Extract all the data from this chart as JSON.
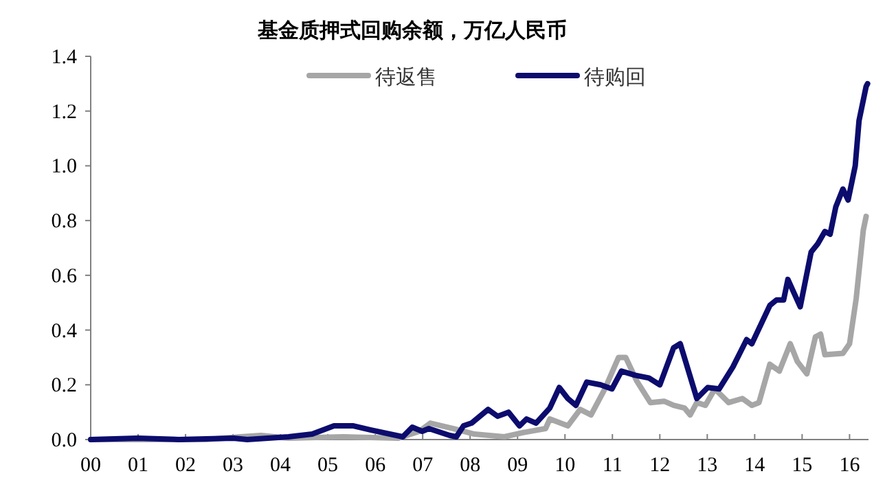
{
  "chart_data": {
    "type": "line",
    "title": "基金质押式回购余额，万亿人民币",
    "legend": "top",
    "xlim": [
      0,
      16.4
    ],
    "ylim": [
      0,
      1.4
    ],
    "xticks": [
      {
        "value": 0,
        "label": "00"
      },
      {
        "value": 1,
        "label": "01"
      },
      {
        "value": 2,
        "label": "02"
      },
      {
        "value": 3,
        "label": "03"
      },
      {
        "value": 4,
        "label": "04"
      },
      {
        "value": 5,
        "label": "05"
      },
      {
        "value": 6,
        "label": "06"
      },
      {
        "value": 7,
        "label": "07"
      },
      {
        "value": 8,
        "label": "08"
      },
      {
        "value": 9,
        "label": "09"
      },
      {
        "value": 10,
        "label": "10"
      },
      {
        "value": 11,
        "label": "11"
      },
      {
        "value": 12,
        "label": "12"
      },
      {
        "value": 13,
        "label": "13"
      },
      {
        "value": 14,
        "label": "14"
      },
      {
        "value": 15,
        "label": "15"
      },
      {
        "value": 16,
        "label": "16"
      }
    ],
    "yticks": [
      {
        "value": 0,
        "label": "0.0"
      },
      {
        "value": 0.2,
        "label": "0.2"
      },
      {
        "value": 0.4,
        "label": "0.4"
      },
      {
        "value": 0.6,
        "label": "0.6"
      },
      {
        "value": 0.8,
        "label": "0.8"
      },
      {
        "value": 1.0,
        "label": "1.0"
      },
      {
        "value": 1.2,
        "label": "1.2"
      },
      {
        "value": 1.4,
        "label": "1.4"
      }
    ],
    "series": [
      {
        "name": "待返售",
        "color": "#a6a6a6",
        "x": [
          0,
          2.43,
          3.16,
          3.59,
          4.17,
          5.33,
          6.49,
          6.93,
          7.16,
          7.65,
          8.09,
          8.72,
          9.1,
          9.59,
          9.68,
          10.06,
          10.32,
          10.55,
          10.84,
          11.13,
          11.28,
          11.51,
          11.8,
          12.09,
          12.29,
          12.52,
          12.64,
          12.78,
          12.96,
          13.16,
          13.45,
          13.74,
          13.94,
          14.09,
          14.32,
          14.52,
          14.75,
          14.9,
          15.1,
          15.28,
          15.39,
          15.48,
          15.86,
          16.0,
          16.14,
          16.29,
          16.35
        ],
        "values": [
          0,
          0,
          0.01,
          0.015,
          0.005,
          0.01,
          0.005,
          0.03,
          0.06,
          0.04,
          0.02,
          0.01,
          0.025,
          0.04,
          0.075,
          0.05,
          0.11,
          0.09,
          0.185,
          0.3,
          0.3,
          0.215,
          0.135,
          0.14,
          0.125,
          0.115,
          0.09,
          0.135,
          0.125,
          0.185,
          0.135,
          0.15,
          0.125,
          0.135,
          0.275,
          0.25,
          0.35,
          0.285,
          0.24,
          0.375,
          0.385,
          0.31,
          0.315,
          0.35,
          0.515,
          0.765,
          0.815
        ]
      },
      {
        "name": "待购回",
        "color": "#0c0c6e",
        "x": [
          0,
          0.99,
          1.86,
          3.01,
          3.3,
          4.17,
          4.67,
          5.13,
          5.54,
          5.91,
          6.58,
          6.78,
          6.99,
          7.13,
          7.57,
          7.71,
          7.86,
          8.03,
          8.38,
          8.58,
          8.81,
          9.04,
          9.19,
          9.39,
          9.68,
          9.88,
          10.06,
          10.23,
          10.46,
          10.75,
          10.99,
          11.19,
          11.48,
          11.77,
          12.0,
          12.29,
          12.43,
          12.78,
          13.01,
          13.25,
          13.54,
          13.83,
          13.94,
          14.32,
          14.46,
          14.61,
          14.7,
          14.96,
          15.19,
          15.33,
          15.48,
          15.59,
          15.71,
          15.86,
          15.97,
          16.12,
          16.2,
          16.35,
          16.38
        ],
        "values": [
          0,
          0.005,
          0,
          0.005,
          0,
          0.01,
          0.02,
          0.05,
          0.05,
          0.035,
          0.01,
          0.045,
          0.03,
          0.04,
          0.015,
          0.01,
          0.05,
          0.06,
          0.11,
          0.085,
          0.1,
          0.05,
          0.075,
          0.06,
          0.115,
          0.19,
          0.15,
          0.125,
          0.21,
          0.2,
          0.185,
          0.25,
          0.235,
          0.225,
          0.2,
          0.335,
          0.35,
          0.15,
          0.19,
          0.185,
          0.265,
          0.365,
          0.35,
          0.49,
          0.51,
          0.51,
          0.585,
          0.485,
          0.685,
          0.715,
          0.76,
          0.75,
          0.85,
          0.915,
          0.875,
          1.0,
          1.165,
          1.29,
          1.3
        ]
      }
    ]
  }
}
